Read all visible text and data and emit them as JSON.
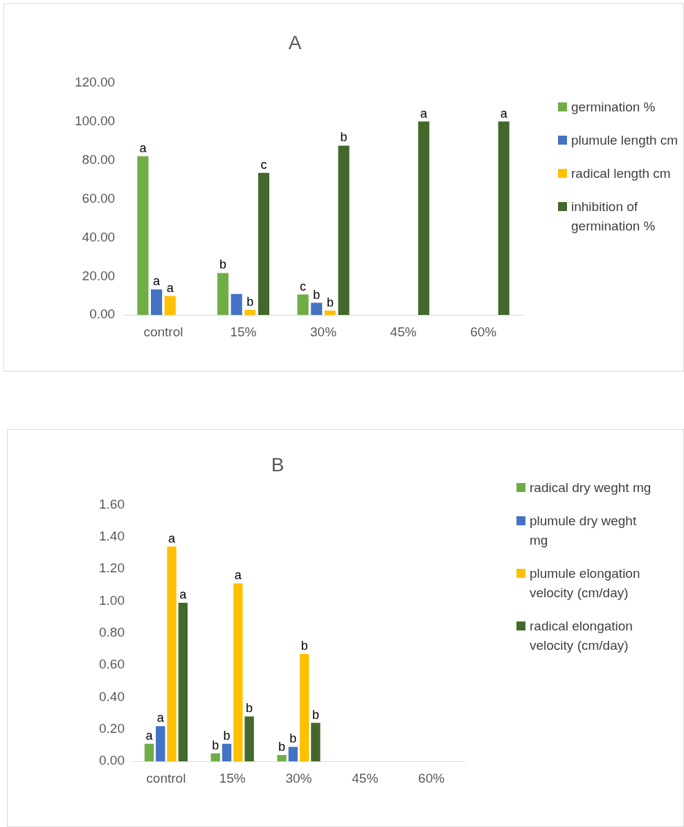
{
  "chart_data": [
    {
      "type": "bar",
      "title": "A",
      "categories": [
        "control",
        "15%",
        "30%",
        "45%",
        "60%"
      ],
      "series": [
        {
          "name": "germination %",
          "color": "#70ad47",
          "values": [
            82,
            21.7,
            10.6,
            null,
            null
          ],
          "value_labels": [
            "a",
            "b",
            "c",
            null,
            null
          ]
        },
        {
          "name": "plumule length cm",
          "color": "#4472c4",
          "values": [
            13.2,
            10.9,
            6.3,
            null,
            null
          ],
          "value_labels": [
            "a",
            null,
            "b",
            null,
            null
          ]
        },
        {
          "name": "radical length cm",
          "color": "#ffc000",
          "values": [
            9.8,
            2.7,
            2.3,
            null,
            null
          ],
          "value_labels": [
            "a",
            "b",
            "b",
            null,
            null
          ]
        },
        {
          "name": "inhibition of germination %",
          "color": "#43682b",
          "values": [
            null,
            73.5,
            87.5,
            100,
            100
          ],
          "value_labels": [
            null,
            "c",
            "b",
            "a",
            "a"
          ]
        }
      ],
      "ylim": [
        0,
        120
      ],
      "yticks": [
        {
          "value": 0,
          "label": "0.00"
        },
        {
          "value": 20,
          "label": "20.00"
        },
        {
          "value": 40,
          "label": "40.00"
        },
        {
          "value": 60,
          "label": "60.00"
        },
        {
          "value": 80,
          "label": "80.00"
        },
        {
          "value": 100,
          "label": "100.00"
        },
        {
          "value": 120,
          "label": "120.00"
        }
      ],
      "grid": false,
      "legend": "right"
    },
    {
      "type": "bar",
      "title": "B",
      "categories": [
        "control",
        "15%",
        "30%",
        "45%",
        "60%"
      ],
      "series": [
        {
          "name": "radical dry weght mg",
          "color": "#70ad47",
          "values": [
            0.11,
            0.05,
            0.04,
            null,
            null
          ],
          "value_labels": [
            "a",
            "b",
            "b",
            null,
            null
          ]
        },
        {
          "name": "plumule dry weght mg",
          "color": "#4472c4",
          "values": [
            0.22,
            0.11,
            0.09,
            null,
            null
          ],
          "value_labels": [
            "a",
            "b",
            "b",
            null,
            null
          ]
        },
        {
          "name": "plumule elongation velocity (cm/day)",
          "color": "#ffc000",
          "values": [
            1.34,
            1.11,
            0.67,
            null,
            null
          ],
          "value_labels": [
            "a",
            "a",
            "b",
            null,
            null
          ]
        },
        {
          "name": "radical elongation velocity  (cm/day)",
          "color": "#43682b",
          "values": [
            0.99,
            0.28,
            0.24,
            null,
            null
          ],
          "value_labels": [
            "a",
            "b",
            "b",
            null,
            null
          ]
        }
      ],
      "ylim": [
        0,
        1.6
      ],
      "yticks": [
        {
          "value": 0,
          "label": "0.00"
        },
        {
          "value": 0.2,
          "label": "0.20"
        },
        {
          "value": 0.4,
          "label": "0.40"
        },
        {
          "value": 0.6,
          "label": "0.60"
        },
        {
          "value": 0.8,
          "label": "0.80"
        },
        {
          "value": 1,
          "label": "1.00"
        },
        {
          "value": 1.2,
          "label": "1.20"
        },
        {
          "value": 1.4,
          "label": "1.40"
        },
        {
          "value": 1.6,
          "label": "1.60"
        }
      ],
      "grid": false,
      "legend": "right"
    }
  ]
}
